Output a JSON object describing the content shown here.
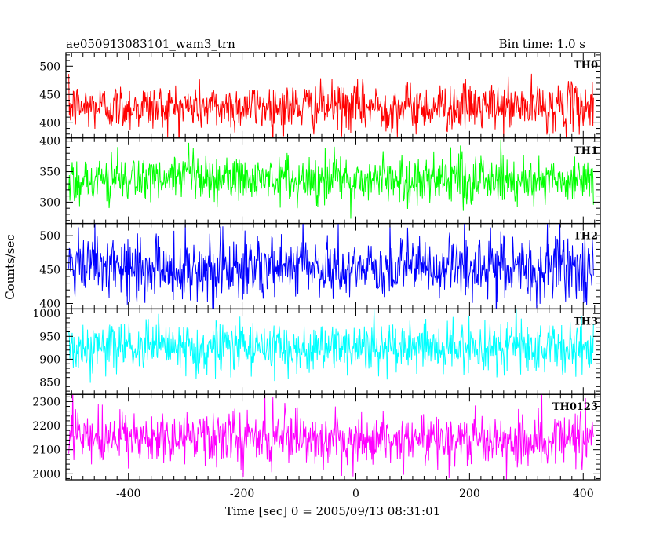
{
  "chart_data": {
    "type": "line",
    "title": "ae050913083101_wam3_trn",
    "bin_time_label": "Bin time: 1.0 s",
    "xlabel": "Time [sec] 0 = 2005/09/13 08:31:01",
    "ylabel": "Counts/sec",
    "xlim": [
      -510,
      430
    ],
    "x_range": [
      -505,
      418
    ],
    "x_ticks": [
      -400,
      -200,
      0,
      200,
      400
    ],
    "grid": false,
    "panels": [
      {
        "name": "TH0",
        "color": "#ff0000",
        "ylim": [
          373,
          524
        ],
        "y_ticks": [
          400,
          450,
          500
        ],
        "mean": 428,
        "sigma": 21
      },
      {
        "name": "TH1",
        "color": "#00ff00",
        "ylim": [
          265,
          405
        ],
        "y_ticks": [
          300,
          350,
          400
        ],
        "mean": 337,
        "sigma": 20
      },
      {
        "name": "TH2",
        "color": "#0000ff",
        "ylim": [
          392,
          518
        ],
        "y_ticks": [
          400,
          450,
          500
        ],
        "mean": 452,
        "sigma": 24
      },
      {
        "name": "TH3",
        "color": "#00ffff",
        "ylim": [
          823,
          1010
        ],
        "y_ticks": [
          850,
          900,
          950,
          1000
        ],
        "mean": 925,
        "sigma": 28
      },
      {
        "name": "TH0123",
        "color": "#ff00ff",
        "ylim": [
          1975,
          2330
        ],
        "y_ticks": [
          2000,
          2100,
          2200,
          2300
        ],
        "mean": 2145,
        "sigma": 55
      }
    ]
  }
}
